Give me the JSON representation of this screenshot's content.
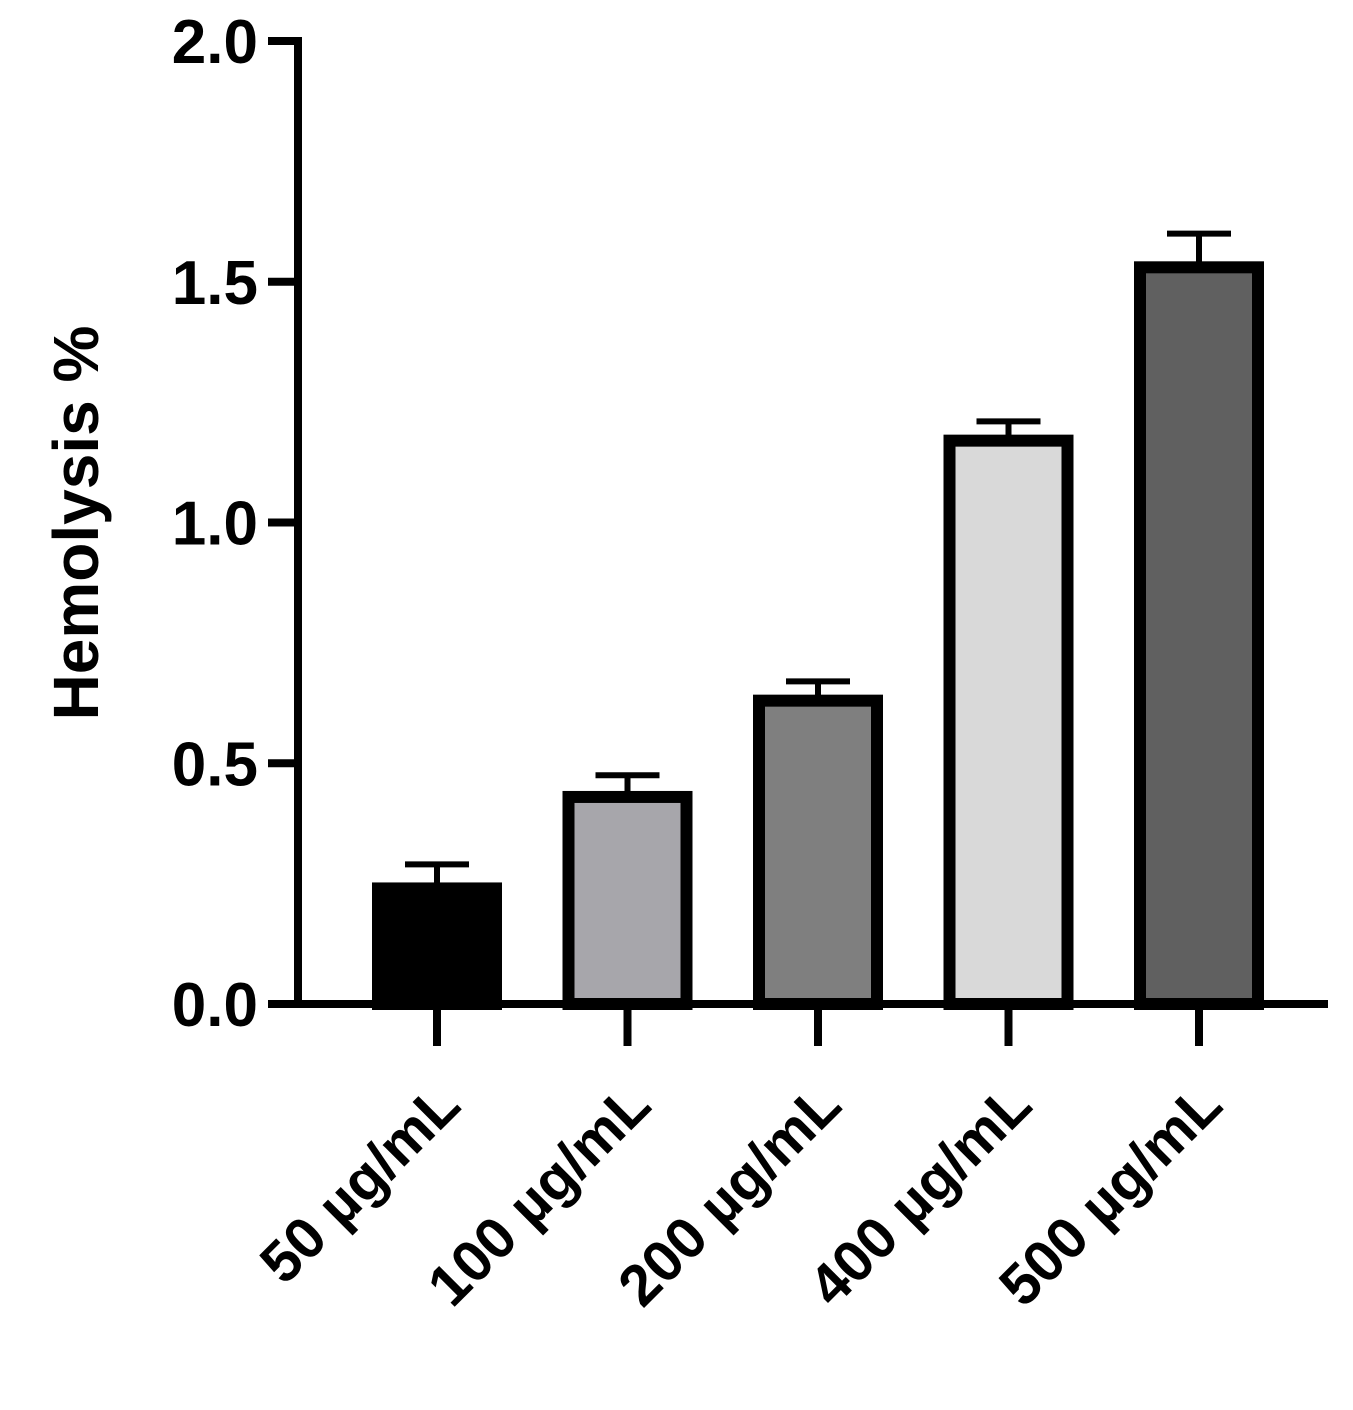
{
  "chart_data": {
    "type": "bar",
    "title": "",
    "xlabel": "",
    "ylabel": "Hemolysis %",
    "ylim": [
      0,
      2.0
    ],
    "yticks": [
      "0.0",
      "0.5",
      "1.0",
      "1.5",
      "2.0"
    ],
    "categories": [
      "50 µg/mL",
      "100 µg/mL",
      "200 µg/mL",
      "400 µg/mL",
      "500 µg/mL"
    ],
    "values": [
      0.24,
      0.43,
      0.63,
      1.17,
      1.53
    ],
    "errors": [
      0.05,
      0.045,
      0.04,
      0.04,
      0.07
    ],
    "colors": [
      "#000000",
      "#a7a6ab",
      "#7f7f7f",
      "#d9d9d9",
      "#606060"
    ],
    "grid": false,
    "legend": "none"
  }
}
